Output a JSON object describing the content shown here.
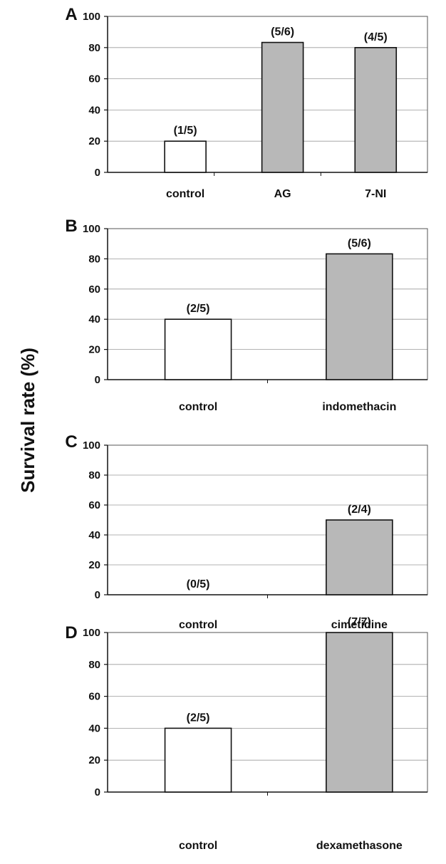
{
  "colors": {
    "control_fill": "#ffffff",
    "treatment_fill": "#b8b8b8",
    "stroke": "#111111",
    "grid": "#9a9a9a"
  },
  "ylabel": "Survival rate (%)",
  "chart_data": [
    {
      "panel": "A",
      "type": "bar",
      "ylim": [
        0,
        100
      ],
      "yticks": [
        0,
        20,
        40,
        60,
        80,
        100
      ],
      "grid": true,
      "categories": [
        "control",
        "AG",
        "7-NI"
      ],
      "values": [
        20,
        83.3,
        80
      ],
      "labels": [
        "(1/5)",
        "(5/6)",
        "(4/5)"
      ],
      "xlabel": "",
      "ylabel": "Survival rate (%)"
    },
    {
      "panel": "B",
      "type": "bar",
      "ylim": [
        0,
        100
      ],
      "yticks": [
        0,
        20,
        40,
        60,
        80,
        100
      ],
      "grid": true,
      "categories": [
        "control",
        "indomethacin"
      ],
      "values": [
        40,
        83.3
      ],
      "labels": [
        "(2/5)",
        "(5/6)"
      ],
      "xlabel": "",
      "ylabel": "Survival rate (%)"
    },
    {
      "panel": "C",
      "type": "bar",
      "ylim": [
        0,
        100
      ],
      "yticks": [
        0,
        20,
        40,
        60,
        80,
        100
      ],
      "grid": true,
      "categories": [
        "control",
        "cimetidine"
      ],
      "values": [
        0,
        50
      ],
      "labels": [
        "(0/5)",
        "(2/4)"
      ],
      "xlabel": "",
      "ylabel": "Survival rate (%)"
    },
    {
      "panel": "D",
      "type": "bar",
      "ylim": [
        0,
        100
      ],
      "yticks": [
        0,
        20,
        40,
        60,
        80,
        100
      ],
      "grid": true,
      "categories": [
        "control",
        "dexamethasone"
      ],
      "values": [
        40,
        100
      ],
      "labels": [
        "(2/5)",
        "(7/7)"
      ],
      "xlabel": "",
      "ylabel": "Survival rate (%)"
    }
  ]
}
